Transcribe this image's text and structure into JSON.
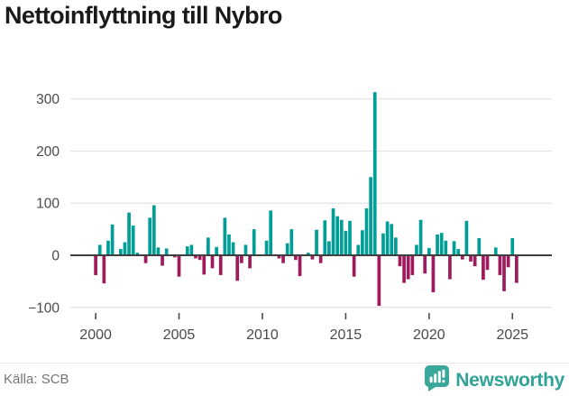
{
  "page": {
    "title": "Nettoinflyttning till Nybro"
  },
  "footer": {
    "source": "Källa: SCB",
    "brand": "Newsworthy",
    "brand_icon": "newsworthy-bubble-barchart-icon"
  },
  "colors": {
    "positive": "#009e97",
    "negative": "#9e1a5c",
    "grid": "#e3e3e3",
    "zero_line": "#3f3f3f",
    "axis_text": "#4a4a4a",
    "title_text": "#1a1a1a",
    "source_text": "#757575",
    "brand": "#30a298"
  },
  "chart_data": {
    "type": "bar",
    "title": "Nettoinflyttning till Nybro",
    "frequency": "quarterly",
    "x_range": {
      "start": "2000 Q1",
      "end": "2025 Q2"
    },
    "grid": "horizontal",
    "legend": "none",
    "y_axis": {
      "tick_labels": [
        "300",
        "200",
        "100",
        "0",
        "−100"
      ],
      "tick_values": [
        300,
        200,
        100,
        0,
        -100
      ],
      "ylim": [
        -110,
        330
      ]
    },
    "x_axis": {
      "tick_labels": [
        "2000",
        "2005",
        "2010",
        "2015",
        "2020",
        "2025"
      ],
      "tick_years": [
        2000,
        2005,
        2010,
        2015,
        2020,
        2025
      ]
    },
    "series": [
      {
        "name": "Nettoinflyttning",
        "values_by_year": {
          "2000": [
            -38,
            20,
            -54,
            28
          ],
          "2001": [
            59,
            0,
            12,
            25
          ],
          "2002": [
            82,
            57,
            5,
            0
          ],
          "2003": [
            -15,
            72,
            96,
            15
          ],
          "2004": [
            -20,
            13,
            0,
            -4
          ],
          "2005": [
            -41,
            0,
            17,
            20
          ],
          "2006": [
            -6,
            -9,
            -37,
            34
          ],
          "2007": [
            -25,
            16,
            -38,
            72
          ],
          "2008": [
            40,
            25,
            -49,
            -15
          ],
          "2009": [
            20,
            -25,
            50,
            0
          ],
          "2010": [
            0,
            28,
            86,
            0
          ],
          "2011": [
            -6,
            -15,
            23,
            50
          ],
          "2012": [
            -9,
            -40,
            0,
            5
          ],
          "2013": [
            -8,
            49,
            -15,
            67
          ],
          "2014": [
            27,
            90,
            75,
            68
          ],
          "2015": [
            47,
            66,
            -41,
            20
          ],
          "2016": [
            48,
            90,
            150,
            313
          ],
          "2017": [
            -97,
            42,
            65,
            60
          ],
          "2018": [
            34,
            -21,
            -53,
            -46
          ],
          "2019": [
            -38,
            20,
            68,
            -35
          ],
          "2020": [
            14,
            -71,
            40,
            43
          ],
          "2021": [
            28,
            -46,
            27,
            12
          ],
          "2022": [
            -8,
            66,
            -12,
            -21
          ],
          "2023": [
            33,
            -47,
            -28,
            0
          ],
          "2024": [
            15,
            -38,
            -69,
            -23
          ],
          "2025": [
            33,
            -53
          ]
        }
      }
    ]
  }
}
